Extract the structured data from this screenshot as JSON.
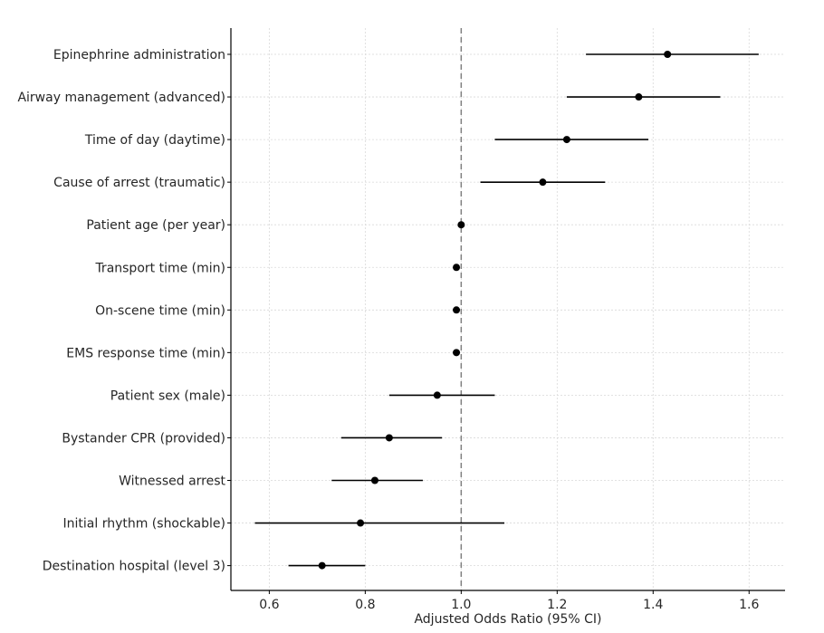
{
  "chart_data": {
    "type": "forest",
    "title": "",
    "xlabel": "Adjusted Odds Ratio (95% CI)",
    "ylabel": "",
    "xlim": [
      0.52,
      1.675
    ],
    "xticks": [
      0.6,
      0.8,
      1.0,
      1.2,
      1.4,
      1.6
    ],
    "xtick_labels": [
      "0.6",
      "0.8",
      "1.0",
      "1.2",
      "1.4",
      "1.6"
    ],
    "reference_line": 1.0,
    "grid": true,
    "colors": {
      "marker": "#000000",
      "whisker": "#000000",
      "reference": "#808080",
      "grid": "#d9d9d9",
      "axis": "#000000"
    },
    "rows": [
      {
        "label": "Epinephrine administration",
        "or": 1.43,
        "lo": 1.26,
        "hi": 1.62
      },
      {
        "label": "Airway management (advanced)",
        "or": 1.37,
        "lo": 1.22,
        "hi": 1.54
      },
      {
        "label": "Time of day (daytime)",
        "or": 1.22,
        "lo": 1.07,
        "hi": 1.39
      },
      {
        "label": "Cause of arrest (traumatic)",
        "or": 1.17,
        "lo": 1.04,
        "hi": 1.3
      },
      {
        "label": "Patient age (per year)",
        "or": 1.0,
        "lo": 0.995,
        "hi": 1.005
      },
      {
        "label": "Transport time (min)",
        "or": 0.99,
        "lo": 0.985,
        "hi": 0.995
      },
      {
        "label": "On-scene time (min)",
        "or": 0.99,
        "lo": 0.985,
        "hi": 0.995
      },
      {
        "label": "EMS response time (min)",
        "or": 0.99,
        "lo": 0.985,
        "hi": 0.995
      },
      {
        "label": "Patient sex (male)",
        "or": 0.95,
        "lo": 0.85,
        "hi": 1.07
      },
      {
        "label": "Bystander CPR (provided)",
        "or": 0.85,
        "lo": 0.75,
        "hi": 0.96
      },
      {
        "label": "Witnessed arrest",
        "or": 0.82,
        "lo": 0.73,
        "hi": 0.92
      },
      {
        "label": "Initial rhythm (shockable)",
        "or": 0.79,
        "lo": 0.57,
        "hi": 1.09
      },
      {
        "label": "Destination hospital (level 3)",
        "or": 0.71,
        "lo": 0.64,
        "hi": 0.8
      }
    ]
  }
}
